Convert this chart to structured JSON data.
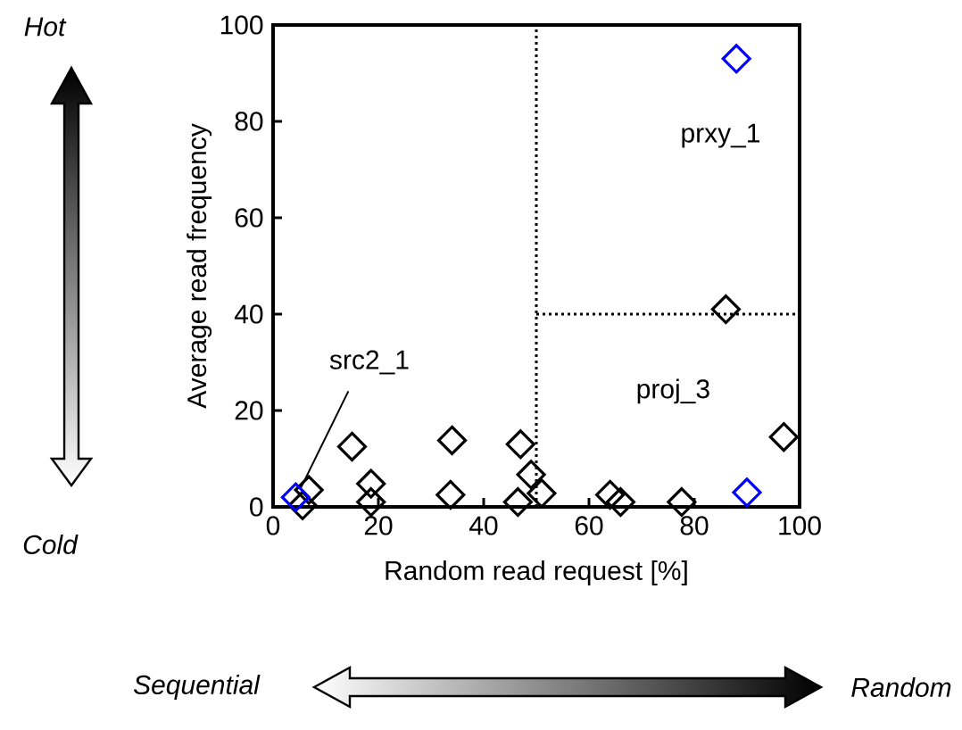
{
  "chart_data": {
    "type": "scatter",
    "xlabel": "Random read request [%]",
    "ylabel": "Average read frequency",
    "xlim": [
      0,
      100
    ],
    "ylim": [
      0,
      100
    ],
    "xticks": [
      0,
      20,
      40,
      60,
      80,
      100
    ],
    "yticks": [
      0,
      20,
      40,
      60,
      80,
      100
    ],
    "marker": "diamond",
    "grid": false,
    "series": [
      {
        "color": "#000000",
        "x": [
          86,
          97,
          15,
          34,
          47,
          18.6,
          18.6,
          6.8,
          5.6,
          33.7,
          49,
          51,
          46.5,
          64,
          66,
          77.6
        ],
        "values": [
          41,
          14.5,
          12.5,
          13.8,
          13,
          4.8,
          1,
          3.5,
          0.3,
          2.5,
          6.7,
          2.8,
          1,
          2.5,
          1,
          1
        ]
      },
      {
        "color": "#0000ff",
        "x": [
          4.3,
          90,
          88
        ],
        "values": [
          2,
          3,
          93
        ]
      }
    ],
    "ref_lines": [
      {
        "axis": "x",
        "value": 50,
        "line_style": "dotted"
      },
      {
        "axis": "y",
        "value": 40,
        "line_style": "dotted"
      }
    ],
    "annotations": [
      {
        "text": "src2_1",
        "x": 4.3,
        "y": 2
      },
      {
        "text": "prxy_1",
        "x": 88,
        "y": 93
      },
      "proj_3",
      "Hot",
      "Cold",
      "Sequential",
      "Random"
    ]
  }
}
